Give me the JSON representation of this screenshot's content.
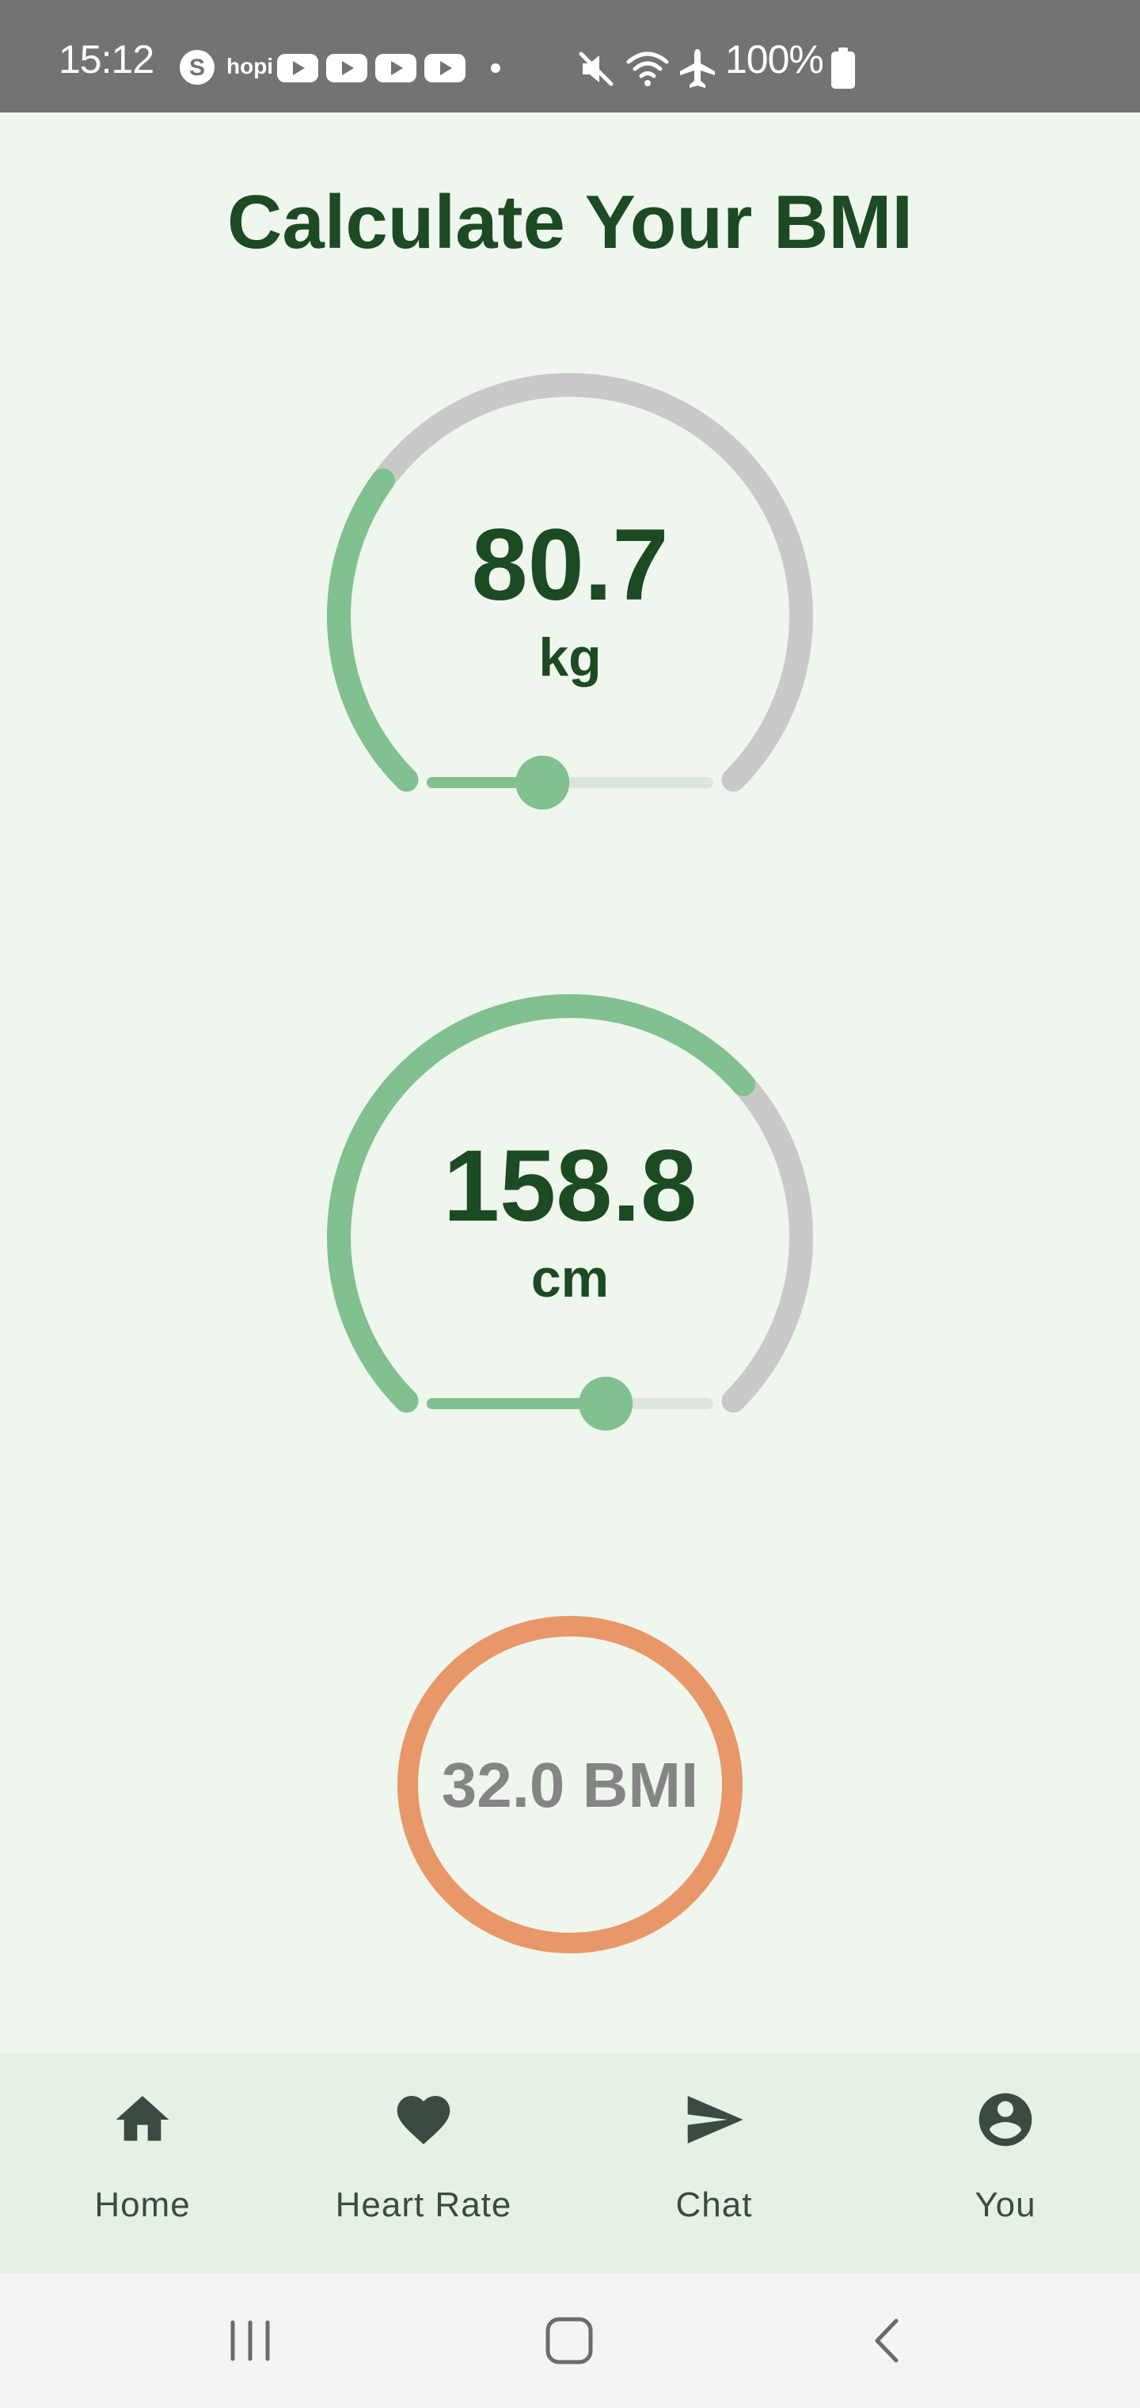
{
  "status_bar": {
    "time": "15:12",
    "notification_icons": [
      "skype-icon",
      "hopi-icon",
      "youtube-icon",
      "youtube-icon",
      "youtube-icon",
      "youtube-icon",
      "dot-icon"
    ],
    "hopi_label": "hopi",
    "system_icons": [
      "mute-icon",
      "wifi-icon",
      "airplane-icon",
      "battery-icon"
    ],
    "battery": "100%"
  },
  "page": {
    "title": "Calculate Your BMI"
  },
  "weight": {
    "value": "80.7",
    "unit": "kg",
    "arc_fraction": 0.3,
    "slider_fraction": 0.4
  },
  "height": {
    "value": "158.8",
    "unit": "cm",
    "arc_fraction": 0.68,
    "slider_fraction": 0.63
  },
  "bmi": {
    "label": "32.0 BMI"
  },
  "bottom_nav": {
    "items": [
      {
        "label": "Home",
        "icon": "home-icon"
      },
      {
        "label": "Heart Rate",
        "icon": "heart-icon"
      },
      {
        "label": "Chat",
        "icon": "send-icon"
      },
      {
        "label": "You",
        "icon": "account-circle-icon"
      }
    ]
  },
  "system_nav": {
    "buttons": [
      "recent-apps-icon",
      "home-button-icon",
      "back-icon"
    ]
  },
  "colors": {
    "background": "#eff6ee",
    "status_bar": "#737373",
    "title_text": "#1c4a22",
    "gauge_active": "#81c08f",
    "gauge_track": "#c9c9c9",
    "slider_track": "#dde6dc",
    "bmi_ring": "#e89868",
    "bmi_text": "#858585",
    "nav_background": "#e6f1e5",
    "nav_text": "#3c4b3f",
    "system_nav_background": "#f4f4f4"
  }
}
